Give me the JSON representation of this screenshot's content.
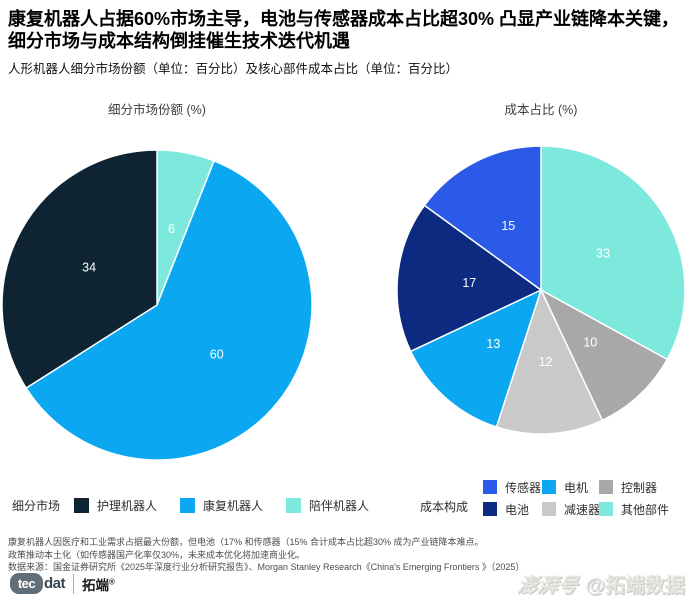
{
  "header": {
    "title_line1": "康复机器人占据60%市场主导，电池与传感器成本占比超30% 凸显产业链降本关键，",
    "title_line2": "细分市场与成本结构倒挂催生技术迭代机遇",
    "subtitle": "人形机器人细分市场份额（单位：百分比）及核心部件成本占比（单位：百分比）"
  },
  "chart_data": [
    {
      "type": "pie",
      "title": "细分市场份额 (%)",
      "start_angle": "12-oclock",
      "direction": "clockwise",
      "slices": [
        {
          "label": "陪伴机器人",
          "value": 6,
          "color": "#7de9dc"
        },
        {
          "label": "康复机器人",
          "value": 60,
          "color": "#0ba7f0"
        },
        {
          "label": "护理机器人",
          "value": 34,
          "color": "#0e2433"
        }
      ],
      "legend": {
        "title": "细分市场",
        "order": [
          "护理机器人",
          "康复机器人",
          "陪伴机器人"
        ]
      }
    },
    {
      "type": "pie",
      "title": "成本占比 (%)",
      "start_angle": "12-oclock",
      "direction": "clockwise",
      "slices": [
        {
          "label": "其他部件",
          "value": 33,
          "color": "#7de9dc"
        },
        {
          "label": "控制器",
          "value": 10,
          "color": "#a8a8a8"
        },
        {
          "label": "减速器",
          "value": 12,
          "color": "#c9c9c9"
        },
        {
          "label": "电机",
          "value": 13,
          "color": "#0ba7f0"
        },
        {
          "label": "电池",
          "value": 17,
          "color": "#0c2a80"
        },
        {
          "label": "传感器",
          "value": 15,
          "color": "#2b5ae8"
        }
      ],
      "legend": {
        "title": "成本构成",
        "rows": [
          [
            "传感器",
            "电机",
            "控制器"
          ],
          [
            "电池",
            "减速器",
            "其他部件"
          ]
        ]
      }
    }
  ],
  "footer": {
    "notes": [
      "康复机器人因医疗和工业需求占据最大份额，但电池（17% 和传感器（15% 合计成本占比超30% 成为产业链降本难点。",
      "政策推动本土化（如传感器国产化率仅30%，未来成本优化将加速商业化。",
      "数据来源：国金证券研究所《2025年深度行业分析研究报告》、Morgan Stanley Research《China's Emerging Frontiers 》（2025）"
    ],
    "brand": {
      "tec": "tec",
      "dat": "dat",
      "cn": "拓端",
      "reg": "®"
    },
    "watermark": {
      "script": "澎湃号",
      "handle": "@拓端数据"
    }
  }
}
